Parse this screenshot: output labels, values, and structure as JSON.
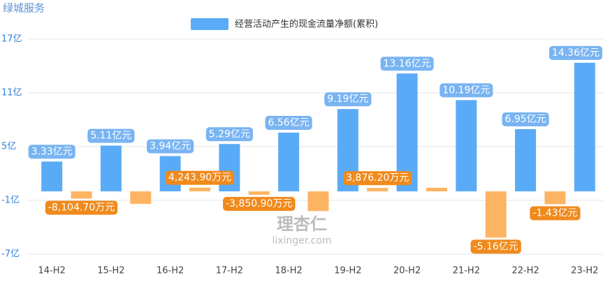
{
  "chart_data": {
    "type": "bar",
    "title": "绿城服务",
    "legend": "经营活动产生的现金流量净额(累积)",
    "legend_color": "#5aabf7",
    "watermark": [
      "理杏仁",
      "lixinger.com"
    ],
    "categories": [
      "14-H2",
      null,
      "15-H2",
      null,
      "16-H2",
      null,
      "17-H2",
      null,
      "18-H2",
      null,
      "19-H2",
      null,
      "20-H2",
      null,
      "21-H2",
      null,
      "22-H2",
      null,
      "23-H2"
    ],
    "values": [
      3.33,
      -0.81047,
      5.11,
      -1.4,
      3.94,
      0.42439,
      5.29,
      -0.38509,
      6.56,
      -2.2,
      9.19,
      0.38762,
      13.16,
      0.4,
      10.19,
      -5.16,
      6.95,
      -1.43,
      14.36
    ],
    "value_labels": [
      "3.33亿元",
      "-8,104.70万元",
      "5.11亿元",
      null,
      "3.94亿元",
      "4,243.90万元",
      "5.29亿元",
      "-3,850.90万元",
      "6.56亿元",
      null,
      "9.19亿元",
      "3,876.20万元",
      "13.16亿元",
      null,
      "10.19亿元",
      "-5.16亿元",
      "6.95亿元",
      "-1.43亿元",
      "14.36亿元"
    ],
    "colors": [
      "#5aabf7",
      "#fdb462",
      "#5aabf7",
      "#fdb462",
      "#5aabf7",
      "#fdb462",
      "#5aabf7",
      "#fdb462",
      "#5aabf7",
      "#fdb462",
      "#5aabf7",
      "#fdb462",
      "#5aabf7",
      "#fdb462",
      "#5aabf7",
      "#fdb462",
      "#5aabf7",
      "#fdb462",
      "#5aabf7"
    ],
    "label_colors": [
      "#79b4f2",
      "#f08a1c",
      "#79b4f2",
      null,
      "#79b4f2",
      "#f08a1c",
      "#79b4f2",
      "#f08a1c",
      "#79b4f2",
      null,
      "#79b4f2",
      "#f08a1c",
      "#79b4f2",
      null,
      "#79b4f2",
      "#f08a1c",
      "#79b4f2",
      "#f08a1c",
      "#79b4f2"
    ],
    "ylim": [
      -7,
      17
    ],
    "yticks": [
      {
        "value": -7,
        "label": "-7亿"
      },
      {
        "value": -1,
        "label": "-1亿"
      },
      {
        "value": 5,
        "label": "5亿"
      },
      {
        "value": 11,
        "label": "11亿"
      },
      {
        "value": 17,
        "label": "17亿"
      }
    ],
    "grid": true
  }
}
